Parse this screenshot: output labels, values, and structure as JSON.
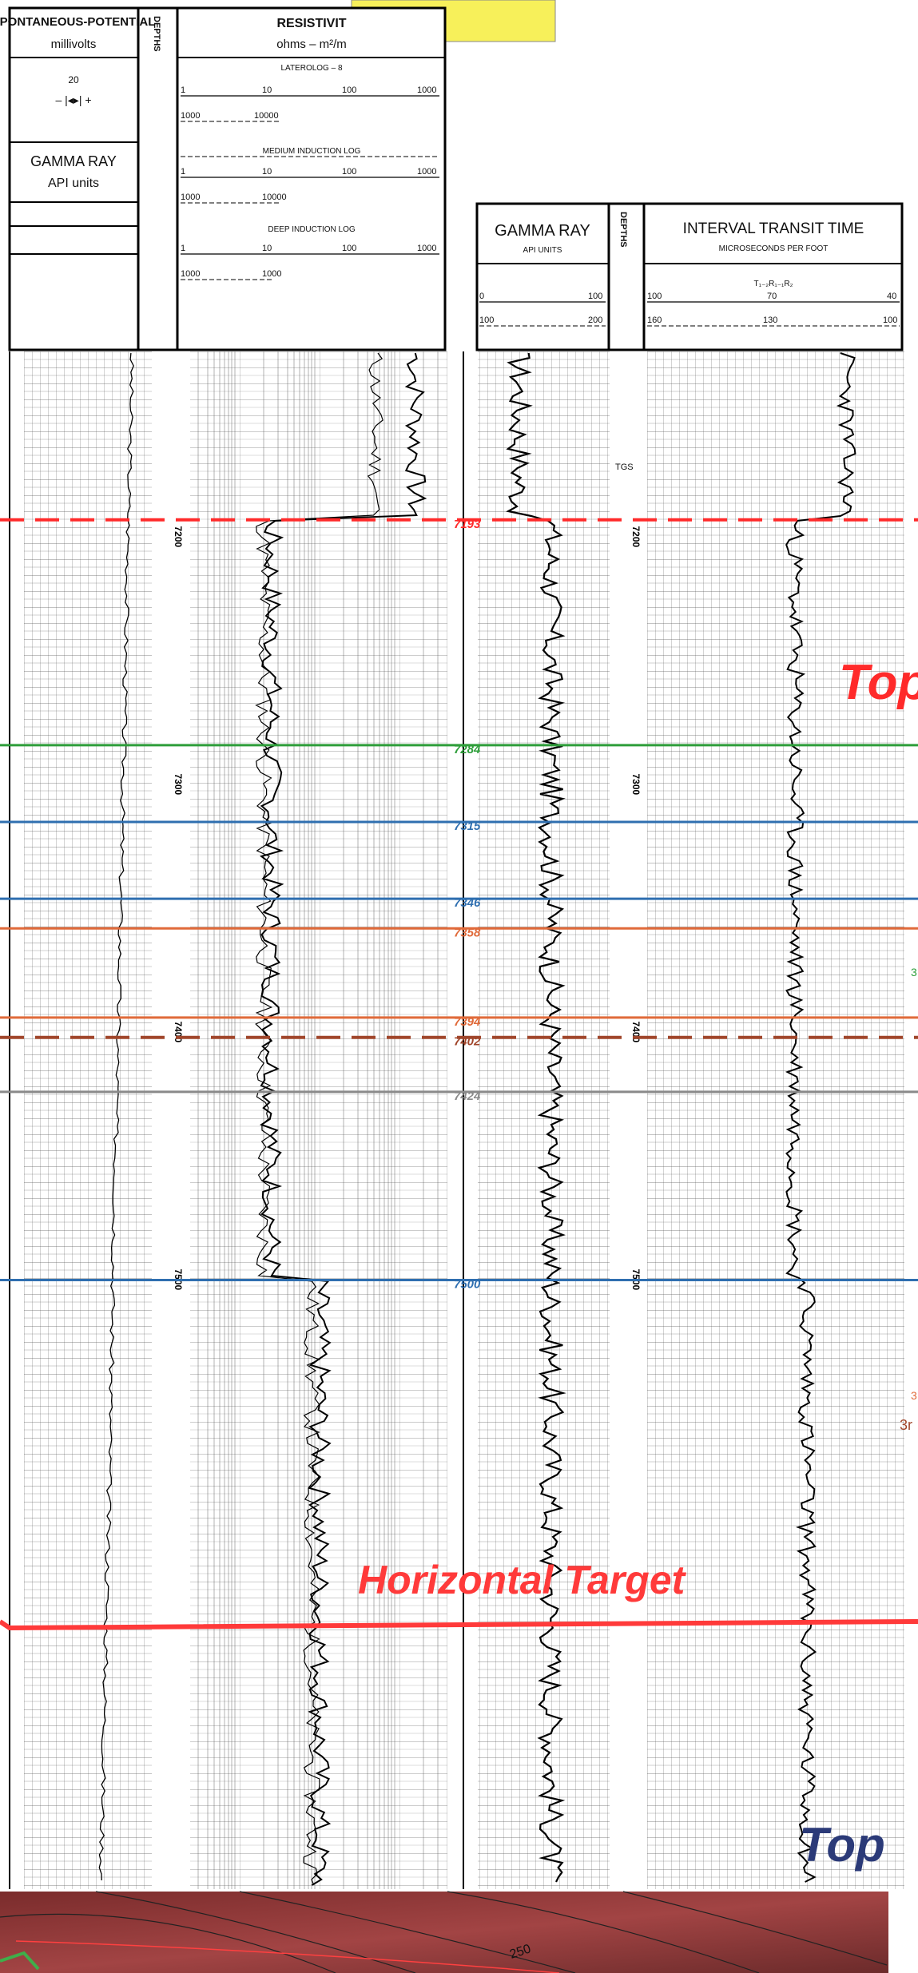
{
  "header": {
    "label_box": "",
    "left_block": {
      "sp_title_1": "SPONTANEOUS-POTENTIAL",
      "sp_title_2": "millivolts",
      "sp_scale_value": "20",
      "sp_scale_marks": "– |◂▸| +",
      "depths_label": "DEPTHS",
      "gr_title_1": "GAMMA RAY",
      "gr_title_2": "API units",
      "res_title": "RESISTIVIT",
      "res_units": "ohms – m²/m",
      "laterolog_title": "LATEROLOG – 8",
      "medium_title": "MEDIUM INDUCTION LOG",
      "deep_title": "DEEP  INDUCTION LOG",
      "scale_a": [
        "1",
        "10",
        "100",
        "1000"
      ],
      "scale_a_low": [
        "1000",
        "10000"
      ],
      "scale_b": [
        "1",
        "10",
        "100",
        "1000"
      ],
      "scale_b_low": [
        "1000",
        "10000"
      ],
      "scale_c": [
        "1",
        "10",
        "100",
        "1000"
      ],
      "scale_c_low": [
        "1000",
        "1000"
      ]
    },
    "right_block": {
      "gr_title_1": "GAMMA RAY",
      "gr_title_2": "API UNITS",
      "depths_label": "DEPTHS",
      "itt_title": "INTERVAL TRANSIT TIME",
      "itt_units": "MICROSECONDS PER FOOT",
      "itt_formula": "T₁₋₂R₁₋₁R₂",
      "gr_scale_1": [
        "0",
        "100"
      ],
      "gr_scale_2": [
        "100",
        "200"
      ],
      "itt_scale_1": [
        "100",
        "70",
        "40"
      ],
      "itt_scale_2": [
        "160",
        "130",
        "100"
      ]
    }
  },
  "log_panel": {
    "depth_ticks_left": [
      "7200",
      "7300",
      "7400",
      "7500"
    ],
    "depth_ticks_right": [
      "7200",
      "7300",
      "7400",
      "7500"
    ],
    "tgs_label": "TGS",
    "markers": [
      {
        "depth": "7193",
        "color": "#ff2a2a",
        "style": "dashed"
      },
      {
        "depth": "7284",
        "color": "#2e9e3a",
        "style": "solid"
      },
      {
        "depth": "7315",
        "color": "#2f6fb0",
        "style": "solid"
      },
      {
        "depth": "7346",
        "color": "#2f6fb0",
        "style": "solid"
      },
      {
        "depth": "7358",
        "color": "#e06a3a",
        "style": "solid"
      },
      {
        "depth": "7394",
        "color": "#e06a3a",
        "style": "solid"
      },
      {
        "depth": "7402",
        "color": "#a0452a",
        "style": "dashed"
      },
      {
        "depth": "7424",
        "color": "#8a8a8a",
        "style": "solid"
      },
      {
        "depth": "7500",
        "color": "#2f6fb0",
        "style": "solid"
      }
    ],
    "right_edge_labels": [
      "3",
      "3",
      "3r"
    ],
    "annotations": {
      "top_red": "Top",
      "horizontal_target": "Horizontal Target",
      "top_blue": "Top"
    }
  },
  "map_strip": {
    "contour_label": "250"
  }
}
